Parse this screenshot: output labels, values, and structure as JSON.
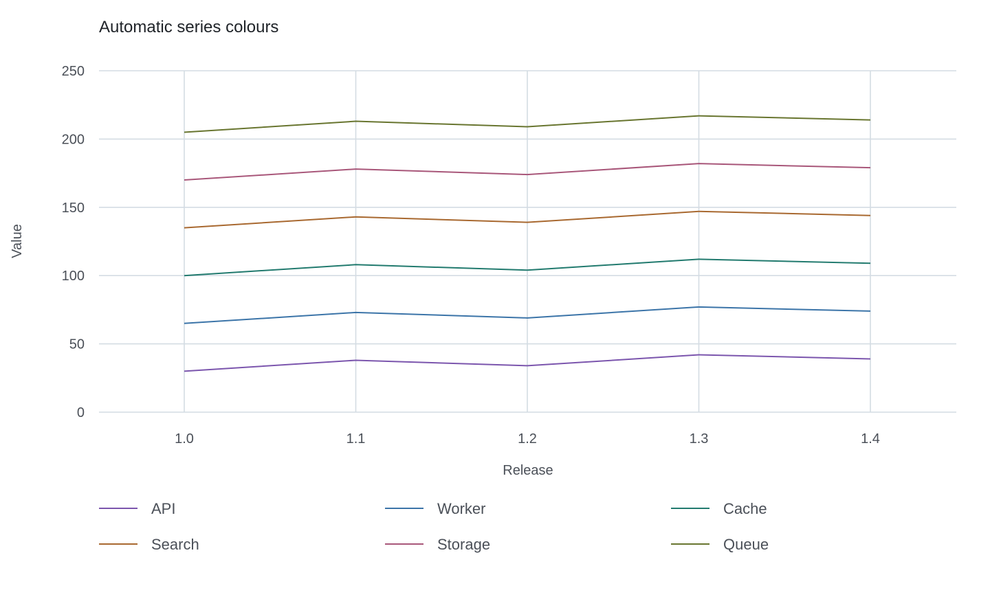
{
  "chart_data": {
    "type": "line",
    "title": "Automatic series colours",
    "xlabel": "Release",
    "ylabel": "Value",
    "categories": [
      "1.0",
      "1.1",
      "1.2",
      "1.3",
      "1.4"
    ],
    "ylim": [
      0,
      250
    ],
    "yticks": [
      0,
      50,
      100,
      150,
      200,
      250
    ],
    "grid": true,
    "legend_position": "bottom",
    "series": [
      {
        "name": "API",
        "color": "#7b55ad",
        "values": [
          30,
          38,
          34,
          42,
          39
        ]
      },
      {
        "name": "Worker",
        "color": "#3b74a8",
        "values": [
          65,
          73,
          69,
          77,
          74
        ]
      },
      {
        "name": "Cache",
        "color": "#217a6e",
        "values": [
          100,
          108,
          104,
          112,
          109
        ]
      },
      {
        "name": "Search",
        "color": "#a8682f",
        "values": [
          135,
          143,
          139,
          147,
          144
        ]
      },
      {
        "name": "Storage",
        "color": "#a85679",
        "values": [
          170,
          178,
          174,
          182,
          179
        ]
      },
      {
        "name": "Queue",
        "color": "#68752f",
        "values": [
          205,
          213,
          209,
          217,
          214
        ]
      }
    ]
  }
}
